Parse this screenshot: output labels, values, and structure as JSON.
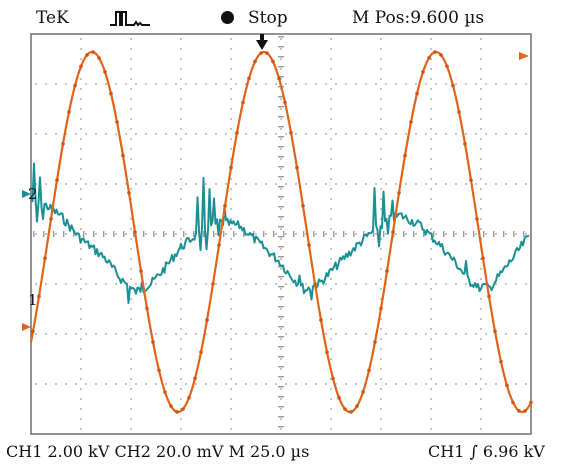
{
  "header": {
    "brand": "TeK",
    "trigger_icon": "pulse-trigger-icon",
    "run_state": "Stop",
    "position": "M  Pos:9.600 µs"
  },
  "markers": {
    "ch1": "1",
    "ch2": "2"
  },
  "footer": {
    "channel_settings": "CH1  2.00 kV  CH2  20.0 mV M  25.0 µs",
    "trigger_readout": "CH1 ∫ 6.96 kV"
  },
  "colors": {
    "ch1": "#e0641a",
    "ch2": "#1a9094",
    "grid": "#9a9a9a",
    "frame": "#6e6e6e"
  }
}
